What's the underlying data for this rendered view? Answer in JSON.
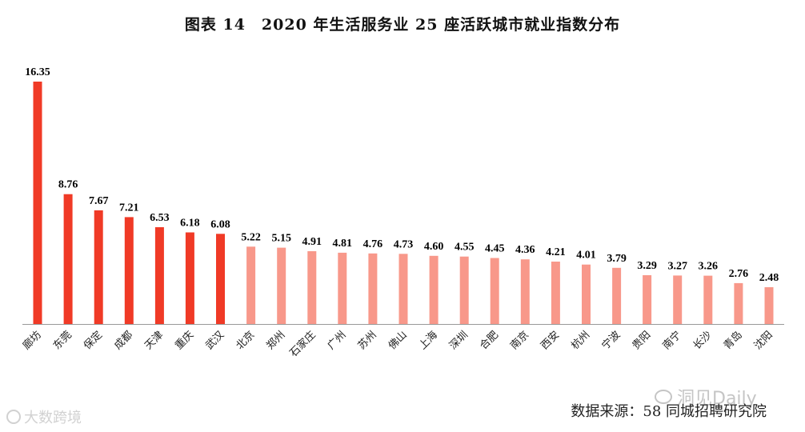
{
  "title": "图表 14　2020 年生活服务业 25 座活跃城市就业指数分布",
  "source": "数据来源：58 同城招聘研究院",
  "watermark_right": "洞见Daily",
  "watermark_left": "大数跨境",
  "colors": {
    "top": "#f03a26",
    "rest": "#f8988a",
    "axis": "#999999"
  },
  "chart_data": {
    "type": "bar",
    "categories": [
      "廊坊",
      "东莞",
      "保定",
      "成都",
      "天津",
      "重庆",
      "武汉",
      "北京",
      "郑州",
      "石家庄",
      "广州",
      "苏州",
      "佛山",
      "上海",
      "深圳",
      "合肥",
      "南京",
      "西安",
      "杭州",
      "宁波",
      "贵阳",
      "南宁",
      "长沙",
      "青岛",
      "沈阳"
    ],
    "values": [
      16.35,
      8.76,
      7.67,
      7.21,
      6.53,
      6.18,
      6.08,
      5.22,
      5.15,
      4.91,
      4.81,
      4.76,
      4.73,
      4.6,
      4.55,
      4.45,
      4.36,
      4.21,
      4.01,
      3.79,
      3.29,
      3.27,
      3.26,
      2.76,
      2.48
    ],
    "value_labels": [
      "16.35",
      "8.76",
      "7.67",
      "7.21",
      "6.53",
      "6.18",
      "6.08",
      "5.22",
      "5.15",
      "4.91",
      "4.81",
      "4.76",
      "4.73",
      "4.60",
      "4.55",
      "4.45",
      "4.36",
      "4.21",
      "4.01",
      "3.79",
      "3.29",
      "3.27",
      "3.26",
      "2.76",
      "2.48"
    ],
    "highlight_count": 7,
    "ylim": [
      0,
      16.35
    ],
    "grid": false,
    "legend": "none"
  }
}
